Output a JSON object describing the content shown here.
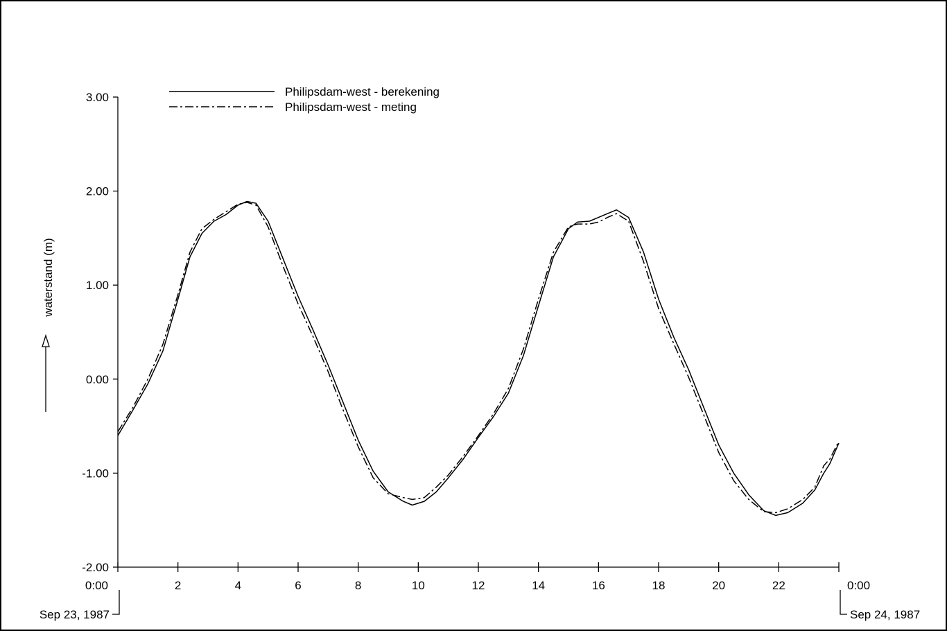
{
  "chart_data": {
    "type": "line",
    "ylabel": "waterstand (m)",
    "ylim": [
      -2.0,
      3.0
    ],
    "yticks": [
      "3.00",
      "2.00",
      "1.00",
      "0.00",
      "-1.00",
      "-2.00"
    ],
    "xlim": [
      0,
      24
    ],
    "xticks": [
      {
        "value": 0,
        "label": "0:00"
      },
      {
        "value": 2,
        "label": "2"
      },
      {
        "value": 4,
        "label": "4"
      },
      {
        "value": 6,
        "label": "6"
      },
      {
        "value": 8,
        "label": "8"
      },
      {
        "value": 10,
        "label": "10"
      },
      {
        "value": 12,
        "label": "12"
      },
      {
        "value": 14,
        "label": "14"
      },
      {
        "value": 16,
        "label": "16"
      },
      {
        "value": 18,
        "label": "18"
      },
      {
        "value": 20,
        "label": "20"
      },
      {
        "value": 22,
        "label": "22"
      },
      {
        "value": 24,
        "label": "0:00"
      }
    ],
    "date_start": "Sep 23, 1987",
    "date_end": "Sep 24, 1987",
    "legend_position": "top-left",
    "grid": false,
    "series": [
      {
        "name": "Philipsdam-west - berekening",
        "style": "solid",
        "color": "#000000",
        "points": [
          [
            0.0,
            -0.6
          ],
          [
            0.5,
            -0.33
          ],
          [
            1.0,
            -0.05
          ],
          [
            1.5,
            0.3
          ],
          [
            2.0,
            0.85
          ],
          [
            2.4,
            1.3
          ],
          [
            2.8,
            1.55
          ],
          [
            3.2,
            1.68
          ],
          [
            3.6,
            1.75
          ],
          [
            4.0,
            1.85
          ],
          [
            4.3,
            1.89
          ],
          [
            4.6,
            1.87
          ],
          [
            5.0,
            1.68
          ],
          [
            5.5,
            1.28
          ],
          [
            6.0,
            0.88
          ],
          [
            6.5,
            0.52
          ],
          [
            7.0,
            0.15
          ],
          [
            7.5,
            -0.25
          ],
          [
            8.0,
            -0.65
          ],
          [
            8.5,
            -0.98
          ],
          [
            9.0,
            -1.2
          ],
          [
            9.5,
            -1.3
          ],
          [
            9.8,
            -1.34
          ],
          [
            10.2,
            -1.3
          ],
          [
            10.6,
            -1.2
          ],
          [
            11.0,
            -1.05
          ],
          [
            11.5,
            -0.85
          ],
          [
            12.0,
            -0.62
          ],
          [
            12.5,
            -0.4
          ],
          [
            13.0,
            -0.15
          ],
          [
            13.5,
            0.25
          ],
          [
            14.0,
            0.78
          ],
          [
            14.5,
            1.3
          ],
          [
            15.0,
            1.6
          ],
          [
            15.3,
            1.67
          ],
          [
            15.7,
            1.68
          ],
          [
            16.0,
            1.72
          ],
          [
            16.3,
            1.76
          ],
          [
            16.6,
            1.8
          ],
          [
            17.0,
            1.72
          ],
          [
            17.5,
            1.35
          ],
          [
            18.0,
            0.85
          ],
          [
            18.5,
            0.45
          ],
          [
            19.0,
            0.1
          ],
          [
            19.5,
            -0.3
          ],
          [
            20.0,
            -0.7
          ],
          [
            20.5,
            -1.0
          ],
          [
            21.0,
            -1.23
          ],
          [
            21.5,
            -1.4
          ],
          [
            21.9,
            -1.45
          ],
          [
            22.3,
            -1.42
          ],
          [
            22.8,
            -1.32
          ],
          [
            23.2,
            -1.18
          ],
          [
            23.5,
            -1.0
          ],
          [
            23.7,
            -0.9
          ],
          [
            24.0,
            -0.68
          ]
        ]
      },
      {
        "name": "Philipsdam-west - meting",
        "style": "dashdot",
        "color": "#000000",
        "points": [
          [
            0.0,
            -0.56
          ],
          [
            0.5,
            -0.3
          ],
          [
            1.0,
            0.0
          ],
          [
            1.5,
            0.37
          ],
          [
            2.0,
            0.9
          ],
          [
            2.4,
            1.35
          ],
          [
            2.8,
            1.6
          ],
          [
            3.2,
            1.7
          ],
          [
            3.6,
            1.78
          ],
          [
            4.0,
            1.86
          ],
          [
            4.3,
            1.88
          ],
          [
            4.6,
            1.85
          ],
          [
            5.0,
            1.62
          ],
          [
            5.5,
            1.2
          ],
          [
            6.0,
            0.8
          ],
          [
            6.5,
            0.45
          ],
          [
            7.0,
            0.08
          ],
          [
            7.5,
            -0.33
          ],
          [
            8.0,
            -0.72
          ],
          [
            8.5,
            -1.05
          ],
          [
            9.0,
            -1.22
          ],
          [
            9.5,
            -1.26
          ],
          [
            9.8,
            -1.28
          ],
          [
            10.2,
            -1.26
          ],
          [
            10.6,
            -1.15
          ],
          [
            11.0,
            -1.02
          ],
          [
            11.5,
            -0.82
          ],
          [
            12.0,
            -0.6
          ],
          [
            12.5,
            -0.37
          ],
          [
            13.0,
            -0.1
          ],
          [
            13.5,
            0.32
          ],
          [
            14.0,
            0.85
          ],
          [
            14.5,
            1.35
          ],
          [
            15.0,
            1.62
          ],
          [
            15.3,
            1.65
          ],
          [
            15.7,
            1.65
          ],
          [
            16.0,
            1.67
          ],
          [
            16.3,
            1.72
          ],
          [
            16.6,
            1.76
          ],
          [
            17.0,
            1.68
          ],
          [
            17.5,
            1.25
          ],
          [
            18.0,
            0.75
          ],
          [
            18.5,
            0.38
          ],
          [
            19.0,
            0.02
          ],
          [
            19.5,
            -0.38
          ],
          [
            20.0,
            -0.78
          ],
          [
            20.5,
            -1.08
          ],
          [
            21.0,
            -1.28
          ],
          [
            21.5,
            -1.41
          ],
          [
            21.9,
            -1.42
          ],
          [
            22.3,
            -1.38
          ],
          [
            22.8,
            -1.28
          ],
          [
            23.2,
            -1.15
          ],
          [
            23.5,
            -0.92
          ],
          [
            23.7,
            -0.85
          ],
          [
            24.0,
            -0.66
          ]
        ]
      }
    ]
  }
}
